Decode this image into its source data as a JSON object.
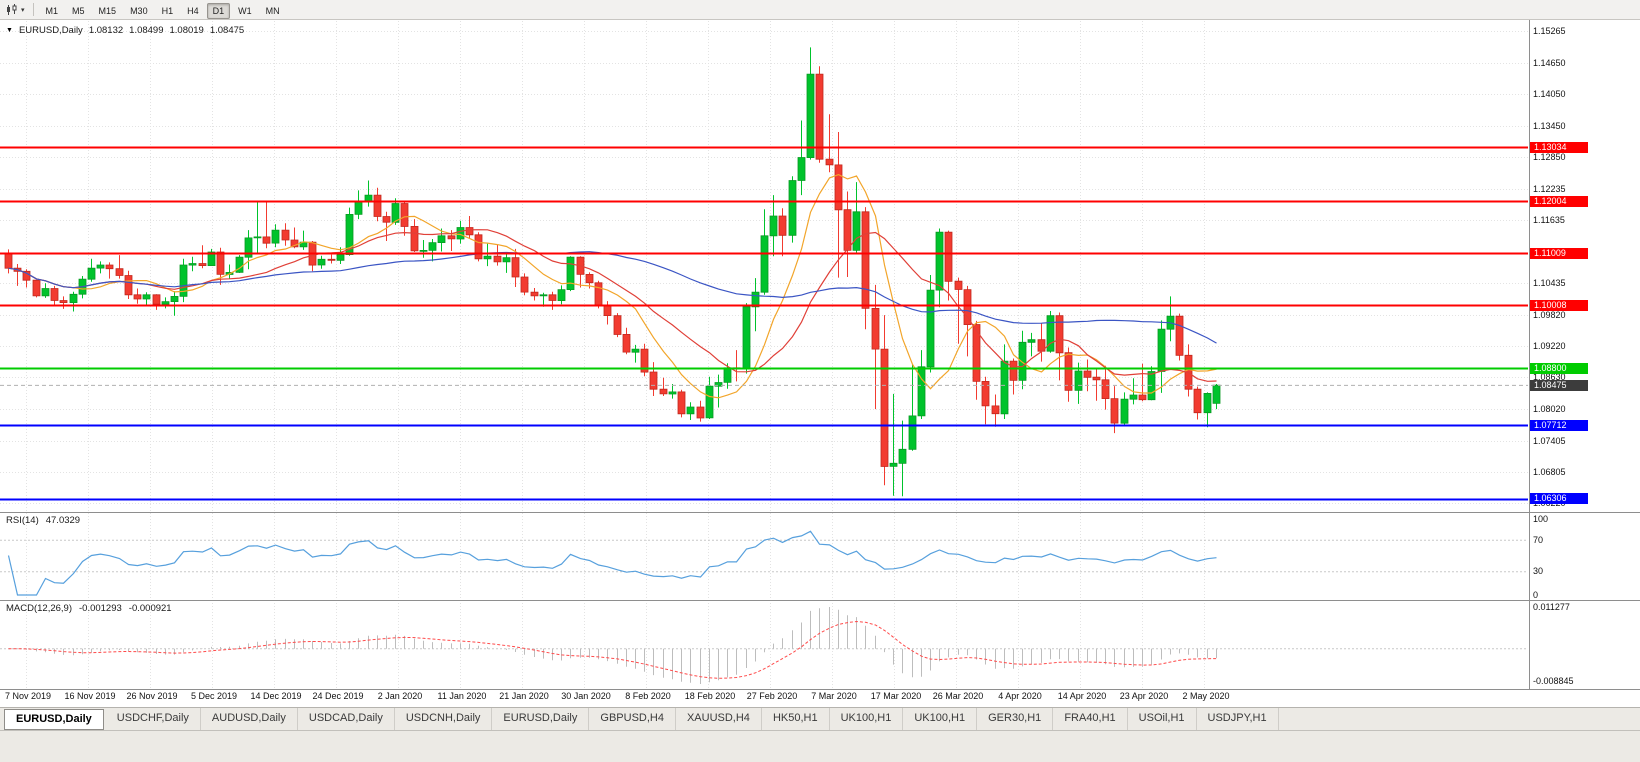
{
  "icons": {
    "chart_type": "candlestick-chart-icon",
    "caret": "▾",
    "collapse": "▼"
  },
  "toolbar": {
    "timeframes": [
      "M1",
      "M5",
      "M15",
      "M30",
      "H1",
      "H4",
      "D1",
      "W1",
      "MN"
    ],
    "active": "D1"
  },
  "chart_data": {
    "type": "candlestick",
    "header": {
      "symbol": "EURUSD,Daily",
      "open": "1.08132",
      "high": "1.08499",
      "low": "1.08019",
      "close": "1.08475"
    },
    "price_axis": {
      "ticks": [
        "1.15265",
        "1.14650",
        "1.14050",
        "1.13450",
        "1.12850",
        "1.12235",
        "1.11635",
        "1.10435",
        "1.09820",
        "1.09220",
        "1.08630",
        "1.08020",
        "1.07405",
        "1.06805",
        "1.06220"
      ]
    },
    "hlines": [
      {
        "price": 1.13034,
        "label": "1.13034",
        "type": "resistance"
      },
      {
        "price": 1.12004,
        "label": "1.12004",
        "type": "resistance"
      },
      {
        "price": 1.11009,
        "label": "1.11009",
        "type": "resistance"
      },
      {
        "price": 1.10008,
        "label": "1.10008",
        "type": "resistance"
      },
      {
        "price": 1.088,
        "label": "1.08800",
        "type": "pivot"
      },
      {
        "price": 1.07712,
        "label": "1.07712",
        "type": "support"
      },
      {
        "price": 1.06306,
        "label": "1.06306",
        "type": "support"
      }
    ],
    "current_price": {
      "label": "1.08475",
      "value": 1.08475
    },
    "date_ticks": [
      "7 Nov 2019",
      "16 Nov 2019",
      "26 Nov 2019",
      "5 Dec 2019",
      "14 Dec 2019",
      "24 Dec 2019",
      "2 Jan 2020",
      "11 Jan 2020",
      "21 Jan 2020",
      "30 Jan 2020",
      "8 Feb 2020",
      "18 Feb 2020",
      "27 Feb 2020",
      "7 Mar 2020",
      "17 Mar 2020",
      "26 Mar 2020",
      "4 Apr 2020",
      "14 Apr 2020",
      "23 Apr 2020",
      "2 May 2020"
    ],
    "moving_averages": [
      {
        "period": 8,
        "color": "#f2a52a"
      },
      {
        "period": 16,
        "color": "#e04038"
      },
      {
        "period": 45,
        "color": "#3b55c4"
      }
    ],
    "indicators": {
      "rsi": {
        "name": "RSI(14)",
        "value": "47.0329",
        "period": 14,
        "levels": [
          "100",
          "70",
          "30",
          "0"
        ]
      },
      "macd": {
        "name": "MACD(12,26,9)",
        "macd_value": "-0.001293",
        "signal_value": "-0.000921",
        "scale_top": "0.011277",
        "scale_bottom": "-0.008845"
      }
    },
    "candles": [
      [
        1.11,
        1.1108,
        1.1062,
        1.1072
      ],
      [
        1.1072,
        1.108,
        1.1038,
        1.1066
      ],
      [
        1.1066,
        1.107,
        1.1035,
        1.1049
      ],
      [
        1.1049,
        1.105,
        1.1016,
        1.1019
      ],
      [
        1.1019,
        1.1043,
        1.1015,
        1.1033
      ],
      [
        1.1033,
        1.1038,
        1.1002,
        1.101
      ],
      [
        1.101,
        1.1018,
        1.0994,
        1.1006
      ],
      [
        1.1006,
        1.1027,
        1.0989,
        1.1022
      ],
      [
        1.1022,
        1.1057,
        1.1014,
        1.1051
      ],
      [
        1.1051,
        1.109,
        1.1046,
        1.1072
      ],
      [
        1.1072,
        1.1085,
        1.1062,
        1.1078
      ],
      [
        1.1078,
        1.1083,
        1.1052,
        1.1071
      ],
      [
        1.1071,
        1.1097,
        1.1052,
        1.1058
      ],
      [
        1.1058,
        1.1067,
        1.1013,
        1.1021
      ],
      [
        1.1021,
        1.1033,
        1.1004,
        1.1013
      ],
      [
        1.1013,
        1.1026,
        1.1001,
        1.1021
      ],
      [
        1.1021,
        1.1022,
        1.0992,
        1.1003
      ],
      [
        1.1003,
        1.1016,
        1.0995,
        1.1008
      ],
      [
        1.1008,
        1.1028,
        1.0981,
        1.1018
      ],
      [
        1.1018,
        1.109,
        1.1007,
        1.1078
      ],
      [
        1.1078,
        1.1094,
        1.1066,
        1.1081
      ],
      [
        1.1081,
        1.1116,
        1.1072,
        1.1077
      ],
      [
        1.1077,
        1.1109,
        1.1077,
        1.1103
      ],
      [
        1.1103,
        1.1111,
        1.104,
        1.106
      ],
      [
        1.106,
        1.1079,
        1.1052,
        1.1064
      ],
      [
        1.1064,
        1.1097,
        1.1063,
        1.1093
      ],
      [
        1.1093,
        1.1145,
        1.107,
        1.113
      ],
      [
        1.113,
        1.1199,
        1.1102,
        1.1132
      ],
      [
        1.1132,
        1.12,
        1.111,
        1.112
      ],
      [
        1.112,
        1.1156,
        1.1112,
        1.1145
      ],
      [
        1.1145,
        1.1158,
        1.1115,
        1.1126
      ],
      [
        1.1126,
        1.115,
        1.111,
        1.1113
      ],
      [
        1.1113,
        1.1144,
        1.1107,
        1.1122
      ],
      [
        1.1122,
        1.1124,
        1.1066,
        1.1078
      ],
      [
        1.1078,
        1.1096,
        1.1071,
        1.1089
      ],
      [
        1.1089,
        1.1098,
        1.1081,
        1.1087
      ],
      [
        1.1087,
        1.1112,
        1.108,
        1.1098
      ],
      [
        1.1098,
        1.1188,
        1.1096,
        1.1175
      ],
      [
        1.1175,
        1.1221,
        1.1166,
        1.1199
      ],
      [
        1.1199,
        1.124,
        1.119,
        1.1212
      ],
      [
        1.1212,
        1.1226,
        1.1162,
        1.1171
      ],
      [
        1.1171,
        1.118,
        1.1124,
        1.116
      ],
      [
        1.116,
        1.1206,
        1.1155,
        1.1196
      ],
      [
        1.1196,
        1.1199,
        1.1134,
        1.1152
      ],
      [
        1.1152,
        1.1166,
        1.1103,
        1.1105
      ],
      [
        1.1105,
        1.1126,
        1.1092,
        1.1106
      ],
      [
        1.1106,
        1.1128,
        1.1085,
        1.1121
      ],
      [
        1.1121,
        1.1148,
        1.1104,
        1.1134
      ],
      [
        1.1134,
        1.1145,
        1.1105,
        1.1128
      ],
      [
        1.1128,
        1.1163,
        1.1119,
        1.115
      ],
      [
        1.115,
        1.1172,
        1.1128,
        1.1136
      ],
      [
        1.1136,
        1.1141,
        1.1085,
        1.109
      ],
      [
        1.109,
        1.1119,
        1.1076,
        1.1095
      ],
      [
        1.1095,
        1.1118,
        1.1077,
        1.1084
      ],
      [
        1.1084,
        1.11,
        1.1063,
        1.1092
      ],
      [
        1.1092,
        1.1109,
        1.1036,
        1.1055
      ],
      [
        1.1055,
        1.1062,
        1.102,
        1.1026
      ],
      [
        1.1026,
        1.1034,
        1.101,
        1.1019
      ],
      [
        1.1019,
        1.1025,
        1.0998,
        1.1021
      ],
      [
        1.1021,
        1.1027,
        1.0992,
        1.101
      ],
      [
        1.101,
        1.1039,
        1.1003,
        1.1031
      ],
      [
        1.1031,
        1.1095,
        1.1028,
        1.1093
      ],
      [
        1.1093,
        1.1095,
        1.1035,
        1.106
      ],
      [
        1.106,
        1.1064,
        1.1033,
        1.1044
      ],
      [
        1.1044,
        1.1048,
        1.0995,
        1.1
      ],
      [
        1.1,
        1.1009,
        1.0964,
        1.0981
      ],
      [
        1.0981,
        1.0986,
        1.094,
        1.0945
      ],
      [
        1.0945,
        1.0958,
        1.0907,
        1.0911
      ],
      [
        1.0911,
        1.0925,
        1.0891,
        1.0917
      ],
      [
        1.0917,
        1.0927,
        1.0865,
        1.0873
      ],
      [
        1.0873,
        1.0892,
        1.0827,
        1.084
      ],
      [
        1.084,
        1.0862,
        1.0827,
        1.0831
      ],
      [
        1.0831,
        1.085,
        1.0822,
        1.0835
      ],
      [
        1.0835,
        1.0839,
        1.0786,
        1.0793
      ],
      [
        1.0793,
        1.0815,
        1.0781,
        1.0806
      ],
      [
        1.0806,
        1.0818,
        1.0778,
        1.0785
      ],
      [
        1.0785,
        1.0864,
        1.0783,
        1.0846
      ],
      [
        1.0846,
        1.0868,
        1.0805,
        1.0853
      ],
      [
        1.0853,
        1.089,
        1.0841,
        1.0881
      ],
      [
        1.0881,
        1.0915,
        1.0855,
        1.088
      ],
      [
        1.088,
        1.1005,
        1.087,
        1.0998
      ],
      [
        1.0998,
        1.1053,
        1.0951,
        1.1026
      ],
      [
        1.1026,
        1.1185,
        1.1021,
        1.1134
      ],
      [
        1.1134,
        1.1212,
        1.1095,
        1.1172
      ],
      [
        1.1172,
        1.1187,
        1.1095,
        1.1135
      ],
      [
        1.1135,
        1.1248,
        1.1121,
        1.124
      ],
      [
        1.124,
        1.1355,
        1.1212,
        1.1284
      ],
      [
        1.1284,
        1.1495,
        1.128,
        1.1444
      ],
      [
        1.1444,
        1.1459,
        1.1274,
        1.1281
      ],
      [
        1.1281,
        1.1367,
        1.1256,
        1.127
      ],
      [
        1.127,
        1.1333,
        1.1054,
        1.1184
      ],
      [
        1.1184,
        1.1219,
        1.1055,
        1.1106
      ],
      [
        1.1106,
        1.1237,
        1.11,
        1.118
      ],
      [
        1.118,
        1.1189,
        1.0955,
        1.0995
      ],
      [
        1.0995,
        1.104,
        1.0802,
        1.0917
      ],
      [
        1.0917,
        1.0982,
        1.0656,
        1.0692
      ],
      [
        1.0692,
        1.0831,
        1.0636,
        1.0698
      ],
      [
        1.0698,
        1.078,
        1.0635,
        1.0725
      ],
      [
        1.0725,
        1.0888,
        1.0722,
        1.0789
      ],
      [
        1.0789,
        1.0915,
        1.0783,
        1.0883
      ],
      [
        1.0883,
        1.1059,
        1.0872,
        1.103
      ],
      [
        1.103,
        1.1148,
        1.0997,
        1.1141
      ],
      [
        1.1141,
        1.1144,
        1.101,
        1.1047
      ],
      [
        1.1047,
        1.1054,
        1.0927,
        1.1031
      ],
      [
        1.1031,
        1.1038,
        1.0903,
        1.0964
      ],
      [
        1.0964,
        1.0971,
        1.082,
        1.0855
      ],
      [
        1.0855,
        1.0864,
        1.0773,
        1.0808
      ],
      [
        1.0808,
        1.083,
        1.0768,
        1.0793
      ],
      [
        1.0793,
        1.0926,
        1.0783,
        1.0894
      ],
      [
        1.0894,
        1.0899,
        1.083,
        1.0857
      ],
      [
        1.0857,
        1.0952,
        1.084,
        1.093
      ],
      [
        1.093,
        1.0948,
        1.0903,
        1.0935
      ],
      [
        1.0935,
        1.0967,
        1.0893,
        1.0913
      ],
      [
        1.0913,
        1.099,
        1.091,
        1.0981
      ],
      [
        1.0981,
        1.0987,
        1.0857,
        1.091
      ],
      [
        1.091,
        1.092,
        1.0816,
        1.0838
      ],
      [
        1.0838,
        1.0891,
        1.0812,
        1.0875
      ],
      [
        1.0875,
        1.0897,
        1.0836,
        1.0863
      ],
      [
        1.0863,
        1.0879,
        1.0818,
        1.0858
      ],
      [
        1.0858,
        1.0885,
        1.0801,
        1.0822
      ],
      [
        1.0822,
        1.0846,
        1.0756,
        1.0775
      ],
      [
        1.0775,
        1.0834,
        1.0772,
        1.0821
      ],
      [
        1.0821,
        1.0861,
        1.0811,
        1.0829
      ],
      [
        1.0829,
        1.0889,
        1.0817,
        1.082
      ],
      [
        1.082,
        1.0884,
        1.0819,
        1.0874
      ],
      [
        1.0874,
        1.0972,
        1.0833,
        1.0955
      ],
      [
        1.0955,
        1.1018,
        1.0932,
        1.098
      ],
      [
        1.098,
        1.0985,
        1.0895,
        1.0905
      ],
      [
        1.0905,
        1.0926,
        1.0826,
        1.084
      ],
      [
        1.084,
        1.0845,
        1.0782,
        1.0795
      ],
      [
        1.0795,
        1.0834,
        1.0767,
        1.0832
      ],
      [
        1.0813,
        1.085,
        1.0802,
        1.0848
      ]
    ]
  },
  "tabs": {
    "items": [
      "EURUSD,Daily",
      "USDCHF,Daily",
      "AUDUSD,Daily",
      "USDCAD,Daily",
      "USDCNH,Daily",
      "EURUSD,Daily",
      "GBPUSD,H4",
      "XAUUSD,H4",
      "HK50,H1",
      "UK100,H1",
      "UK100,H1",
      "GER30,H1",
      "FRA40,H1",
      "USOil,H1",
      "USDJPY,H1"
    ],
    "active_index": 0
  },
  "colors": {
    "bull": "#00c32c",
    "bear": "#f23b30",
    "bull_edge": "#089a22",
    "bear_edge": "#c0281e",
    "grid": "#e3e3e3",
    "separator": "#8e8e8e",
    "resistance": "#ff0000",
    "support": "#0000ff",
    "pivot": "#00cc00",
    "bid_line": "#b0b0b0",
    "price_label_bg": "#3c3c3c",
    "rsi": "#57a0dd",
    "rsi_levels": "#c8c8c8",
    "macd_hist": "#bdbdbd",
    "macd_signal": "#ff4a4a",
    "axis_text": "#111111"
  }
}
